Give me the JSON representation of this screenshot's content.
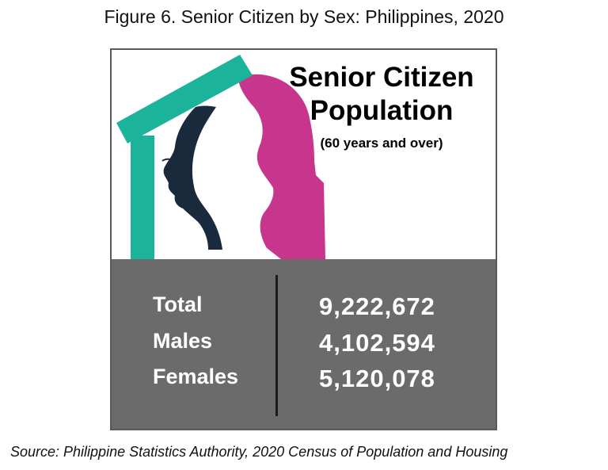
{
  "figure_title": "Figure 6. Senior Citizen by Sex: Philippines, 2020",
  "card": {
    "headline_line1": "Senior Citizen",
    "headline_line2": "Population",
    "subheadline": "(60 years and over)"
  },
  "colors": {
    "roof": "#1cb39b",
    "female_silhouette": "#c7358c",
    "male_silhouette": "#1a2a3d",
    "stats_background": "#6b6b6b",
    "stats_text": "#ffffff"
  },
  "chart_data": {
    "type": "table",
    "title": "Figure 6. Senior Citizen by Sex: Philippines, 2020",
    "rows": [
      {
        "label": "Total",
        "value": "9,222,672"
      },
      {
        "label": "Males",
        "value": "4,102,594"
      },
      {
        "label": "Females",
        "value": "5,120,078"
      }
    ]
  },
  "source": "Source:  Philippine Statistics Authority, 2020 Census of Population and Housing"
}
